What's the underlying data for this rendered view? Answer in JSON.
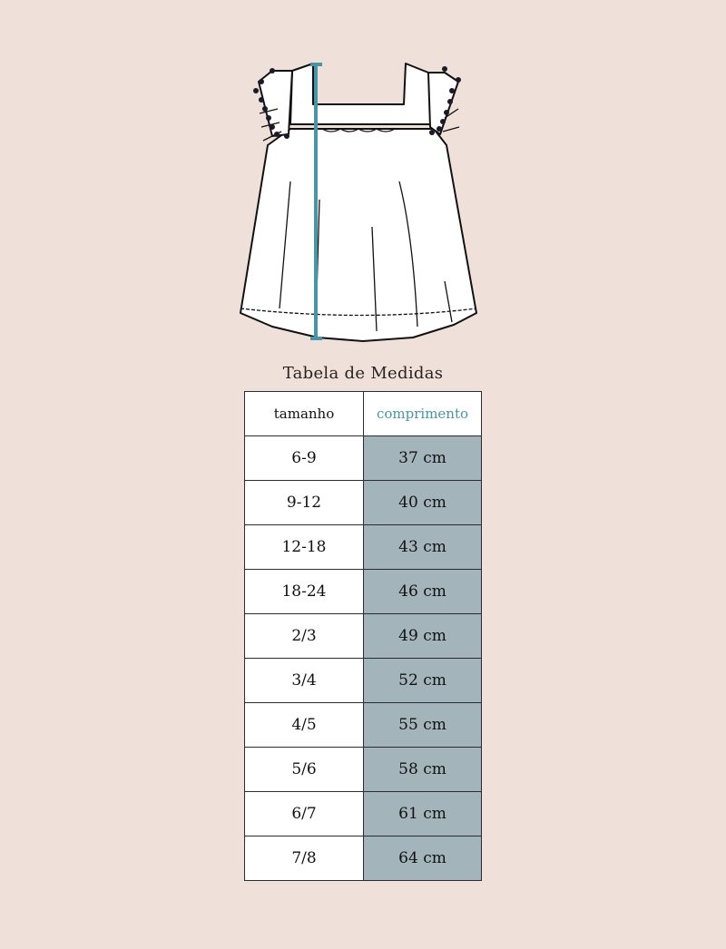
{
  "title": "Tabela de Medidas",
  "colors": {
    "background": "#efe1da",
    "value_cell": "#a3b4bb",
    "accent": "#4a94a8"
  },
  "illustration": "dress-flat-sketch-with-length-measure",
  "table": {
    "headers": [
      "tamanho",
      "comprimento"
    ],
    "rows": [
      {
        "size": "6-9",
        "length": "37 cm"
      },
      {
        "size": "9-12",
        "length": "40 cm"
      },
      {
        "size": "12-18",
        "length": "43 cm"
      },
      {
        "size": "18-24",
        "length": "46 cm"
      },
      {
        "size": "2/3",
        "length": "49 cm"
      },
      {
        "size": "3/4",
        "length": "52 cm"
      },
      {
        "size": "4/5",
        "length": "55 cm"
      },
      {
        "size": "5/6",
        "length": "58 cm"
      },
      {
        "size": "6/7",
        "length": "61 cm"
      },
      {
        "size": "7/8",
        "length": "64 cm"
      }
    ]
  }
}
